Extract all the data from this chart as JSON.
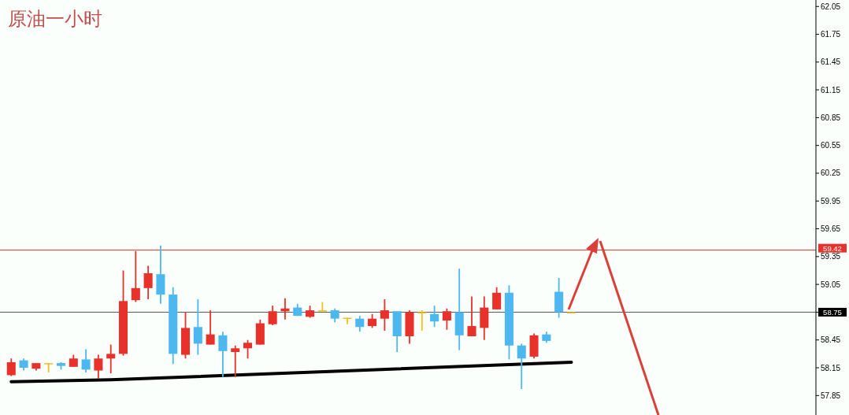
{
  "chart_data": {
    "type": "candlestick",
    "title": "原油一小时",
    "categories": [
      null,
      null,
      null,
      null,
      null,
      null,
      null,
      null,
      null,
      null,
      null,
      null,
      null,
      null,
      null,
      null,
      null,
      null,
      null,
      null,
      null,
      null,
      null,
      null,
      null,
      null,
      null,
      null,
      null,
      null,
      null,
      null,
      null,
      null,
      null,
      null,
      null,
      null,
      null,
      null,
      null,
      null,
      null,
      null,
      null,
      null,
      null,
      null,
      null,
      null,
      null,
      null,
      null,
      null,
      null,
      null,
      null,
      null,
      null,
      null,
      null,
      null,
      null,
      null,
      null
    ],
    "ohlc": [
      [
        58.07,
        58.25,
        58.06,
        58.21
      ],
      [
        58.23,
        58.25,
        58.12,
        58.15
      ],
      [
        58.14,
        58.2,
        58.12,
        58.2
      ],
      [
        58.2,
        58.2,
        58.1,
        58.2
      ],
      [
        58.2,
        58.21,
        58.13,
        58.17
      ],
      [
        58.16,
        58.29,
        58.16,
        58.25
      ],
      [
        58.24,
        58.35,
        58.1,
        58.13
      ],
      [
        58.12,
        58.29,
        58.03,
        58.25
      ],
      [
        58.25,
        58.4,
        58.09,
        58.3
      ],
      [
        58.3,
        59.2,
        58.28,
        58.87
      ],
      [
        58.88,
        59.41,
        58.86,
        59.01
      ],
      [
        59.01,
        59.25,
        58.89,
        59.17
      ],
      [
        59.16,
        59.47,
        58.84,
        58.94
      ],
      [
        58.94,
        59.02,
        58.19,
        58.3
      ],
      [
        58.29,
        58.75,
        58.25,
        58.58
      ],
      [
        58.59,
        58.89,
        58.29,
        58.41
      ],
      [
        58.4,
        58.77,
        58.4,
        58.51
      ],
      [
        58.5,
        58.54,
        58.05,
        58.33
      ],
      [
        58.32,
        58.39,
        58.05,
        58.36
      ],
      [
        58.36,
        58.45,
        58.25,
        58.42
      ],
      [
        58.4,
        58.67,
        58.4,
        58.63
      ],
      [
        58.62,
        58.82,
        58.61,
        58.76
      ],
      [
        58.76,
        58.9,
        58.67,
        58.79
      ],
      [
        58.8,
        58.84,
        58.71,
        58.71
      ],
      [
        58.7,
        58.82,
        58.69,
        58.77
      ],
      [
        58.77,
        58.86,
        58.77,
        58.77
      ],
      [
        58.77,
        58.79,
        58.64,
        58.68
      ],
      [
        58.69,
        58.69,
        58.62,
        58.69
      ],
      [
        58.68,
        58.71,
        58.54,
        58.59
      ],
      [
        58.6,
        58.73,
        58.58,
        58.68
      ],
      [
        58.68,
        58.89,
        58.55,
        58.77
      ],
      [
        58.76,
        58.76,
        58.32,
        58.49
      ],
      [
        58.49,
        58.77,
        58.41,
        58.75
      ],
      [
        58.75,
        58.77,
        58.55,
        58.75
      ],
      [
        58.73,
        58.82,
        58.59,
        58.65
      ],
      [
        58.66,
        58.79,
        58.56,
        58.76
      ],
      [
        58.75,
        59.22,
        58.34,
        58.5
      ],
      [
        58.49,
        58.92,
        58.49,
        58.6
      ],
      [
        58.58,
        58.92,
        58.45,
        58.8
      ],
      [
        58.78,
        59.02,
        58.78,
        58.96
      ],
      [
        58.96,
        59.04,
        58.24,
        58.39
      ],
      [
        58.39,
        58.41,
        57.92,
        58.25
      ],
      [
        58.27,
        58.52,
        58.25,
        58.5
      ],
      [
        58.51,
        58.54,
        58.42,
        58.44
      ],
      [
        58.97,
        59.12,
        58.69,
        58.75
      ],
      [
        58.75,
        58.75,
        58.75,
        58.75
      ],
      null,
      null,
      null,
      null,
      null,
      null,
      null,
      null,
      null,
      null,
      null,
      null,
      null,
      null,
      null,
      null,
      null,
      null,
      null
    ],
    "colors": [
      "#e8312a",
      "#4db8f0",
      "#e8312a",
      "#f0c020",
      "#4db8f0",
      "#e8312a",
      "#4db8f0",
      "#e8312a",
      "#e8312a",
      "#e8312a",
      "#e8312a",
      "#e8312a",
      "#4db8f0",
      "#4db8f0",
      "#e8312a",
      "#4db8f0",
      "#e8312a",
      "#4db8f0",
      "#e8312a",
      "#e8312a",
      "#e8312a",
      "#e8312a",
      "#e8312a",
      "#4db8f0",
      "#e8312a",
      "#f0c020",
      "#4db8f0",
      "#f0c020",
      "#4db8f0",
      "#e8312a",
      "#e8312a",
      "#4db8f0",
      "#e8312a",
      "#f0c020",
      "#4db8f0",
      "#e8312a",
      "#4db8f0",
      "#e8312a",
      "#e8312a",
      "#e8312a",
      "#4db8f0",
      "#4db8f0",
      "#e8312a",
      "#4db8f0",
      "#4db8f0",
      "#f0c020",
      null,
      null,
      null,
      null,
      null,
      null,
      null,
      null,
      null,
      null,
      null,
      null,
      null,
      null,
      null,
      null,
      null,
      null,
      null
    ],
    "series": [
      {
        "type": "line",
        "color": "#000000",
        "values": [
          58.0,
          null,
          null,
          null,
          null,
          null,
          null,
          null,
          58.02,
          null,
          null,
          null,
          null,
          null,
          null,
          null,
          null,
          null,
          null,
          null,
          null,
          null,
          null,
          null,
          null,
          null,
          null,
          null,
          null,
          null,
          null,
          null,
          null,
          null,
          null,
          null,
          null,
          null,
          null,
          null,
          null,
          null,
          null,
          null,
          null,
          58.21,
          null,
          null,
          null,
          null,
          null,
          null,
          null,
          null,
          null,
          null,
          null,
          null,
          null,
          null,
          null,
          null,
          null,
          null,
          null
        ]
      }
    ],
    "ylim": [
      57.64,
      62.12
    ],
    "yticks": [
      57.85,
      58.15,
      58.45,
      58.75,
      59.05,
      59.35,
      59.65,
      59.95,
      60.25,
      60.55,
      60.85,
      61.15,
      61.45,
      61.75,
      62.05
    ],
    "ref_lines": [
      {
        "axis": "y",
        "value": 59.42,
        "label": "59.42",
        "color": "#e8312a"
      },
      {
        "axis": "y",
        "value": 58.75,
        "label": "58.75",
        "color": "#555555"
      }
    ]
  }
}
